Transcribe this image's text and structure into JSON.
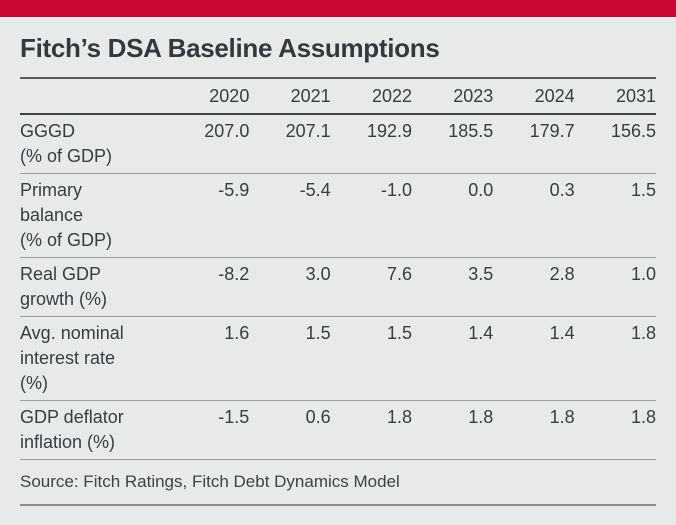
{
  "brand_color": "#C90735",
  "background_color": "#E8E9E9",
  "figure": {
    "title": "Fitch’s DSA Baseline Assumptions",
    "source": "Source: Fitch Ratings, Fitch Debt Dynamics Model"
  },
  "table": {
    "columns": [
      "2020",
      "2021",
      "2022",
      "2023",
      "2024",
      "2031"
    ],
    "rows": [
      {
        "label": "GGGD\n(% of GDP)",
        "values": [
          "207.0",
          "207.1",
          "192.9",
          "185.5",
          "179.7",
          "156.5"
        ]
      },
      {
        "label": "Primary\nbalance\n(% of GDP)",
        "values": [
          "-5.9",
          "-5.4",
          "-1.0",
          "0.0",
          "0.3",
          "1.5"
        ]
      },
      {
        "label": "Real GDP\ngrowth (%)",
        "values": [
          "-8.2",
          "3.0",
          "7.6",
          "3.5",
          "2.8",
          "1.0"
        ]
      },
      {
        "label": "Avg. nominal\ninterest rate\n(%)",
        "values": [
          "1.6",
          "1.5",
          "1.5",
          "1.4",
          "1.4",
          "1.8"
        ]
      },
      {
        "label": "GDP deflator\ninflation (%)",
        "values": [
          "-1.5",
          "0.6",
          "1.8",
          "1.8",
          "1.8",
          "1.8"
        ]
      }
    ]
  },
  "chart_data": {
    "type": "table",
    "title": "Fitch’s DSA Baseline Assumptions",
    "columns": [
      "2020",
      "2021",
      "2022",
      "2023",
      "2024",
      "2031"
    ],
    "rows": [
      {
        "label": "GGGD (% of GDP)",
        "values": [
          207.0,
          207.1,
          192.9,
          185.5,
          179.7,
          156.5
        ]
      },
      {
        "label": "Primary balance (% of GDP)",
        "values": [
          -5.9,
          -5.4,
          -1.0,
          0.0,
          0.3,
          1.5
        ]
      },
      {
        "label": "Real GDP growth (%)",
        "values": [
          -8.2,
          3.0,
          7.6,
          3.5,
          2.8,
          1.0
        ]
      },
      {
        "label": "Avg. nominal interest rate (%)",
        "values": [
          1.6,
          1.5,
          1.5,
          1.4,
          1.4,
          1.8
        ]
      },
      {
        "label": "GDP deflator inflation (%)",
        "values": [
          -1.5,
          0.6,
          1.8,
          1.8,
          1.8,
          1.8
        ]
      }
    ],
    "source": "Source: Fitch Ratings, Fitch Debt Dynamics Model"
  }
}
